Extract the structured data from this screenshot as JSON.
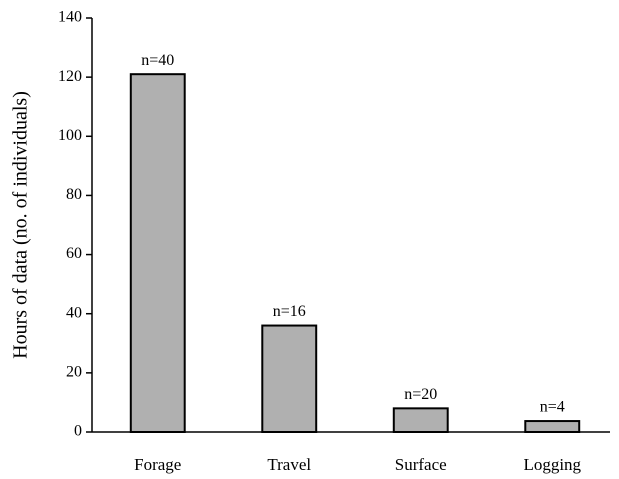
{
  "chart_data": {
    "type": "bar",
    "y_label": "Hours of data (no. of individuals)",
    "categories": [
      "Forage",
      "Travel",
      "Surface",
      "Logging"
    ],
    "values": [
      121,
      36,
      8,
      3.7
    ],
    "annotations": [
      "n=40",
      "n=16",
      "n=20",
      "n=4"
    ],
    "color": "#b0b0b0",
    "ylim": [
      0,
      140
    ],
    "yticks": [
      0,
      20,
      40,
      60,
      80,
      100,
      120,
      140
    ],
    "grid": false
  }
}
